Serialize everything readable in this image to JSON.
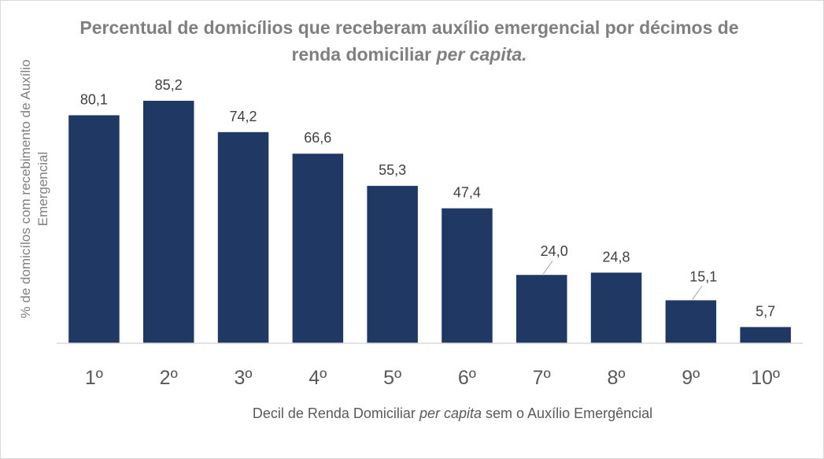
{
  "chart_data": {
    "type": "bar",
    "title_main": "Percentual de domicílios que receberam auxílio emergencial por décimos de renda domiciliar",
    "title_italic": "per capita.",
    "ylabel": "% de domicílos com recebimento de Auxílio Emergencial",
    "xlabel_before": "Decil de Renda Domiciliar",
    "xlabel_italic": "per capita",
    "xlabel_after": "sem o Auxílio Emergêncial",
    "categories": [
      "1º",
      "2º",
      "3º",
      "4º",
      "5º",
      "6º",
      "7º",
      "8º",
      "9º",
      "10º"
    ],
    "values": [
      80.1,
      85.2,
      74.2,
      66.6,
      55.3,
      47.4,
      24.0,
      24.8,
      15.1,
      5.7
    ],
    "data_labels": [
      "80,1",
      "85,2",
      "74,2",
      "66,6",
      "55,3",
      "47,4",
      "24,0",
      "24,8",
      "15,1",
      "5,7"
    ],
    "ylim": [
      0,
      85.2
    ],
    "grid": false,
    "legend": "none",
    "colors": {
      "bar": "#1f3864",
      "axis": "#d9d9d9",
      "title": "#7f7f7f",
      "leader": "#a6a6a6"
    }
  }
}
